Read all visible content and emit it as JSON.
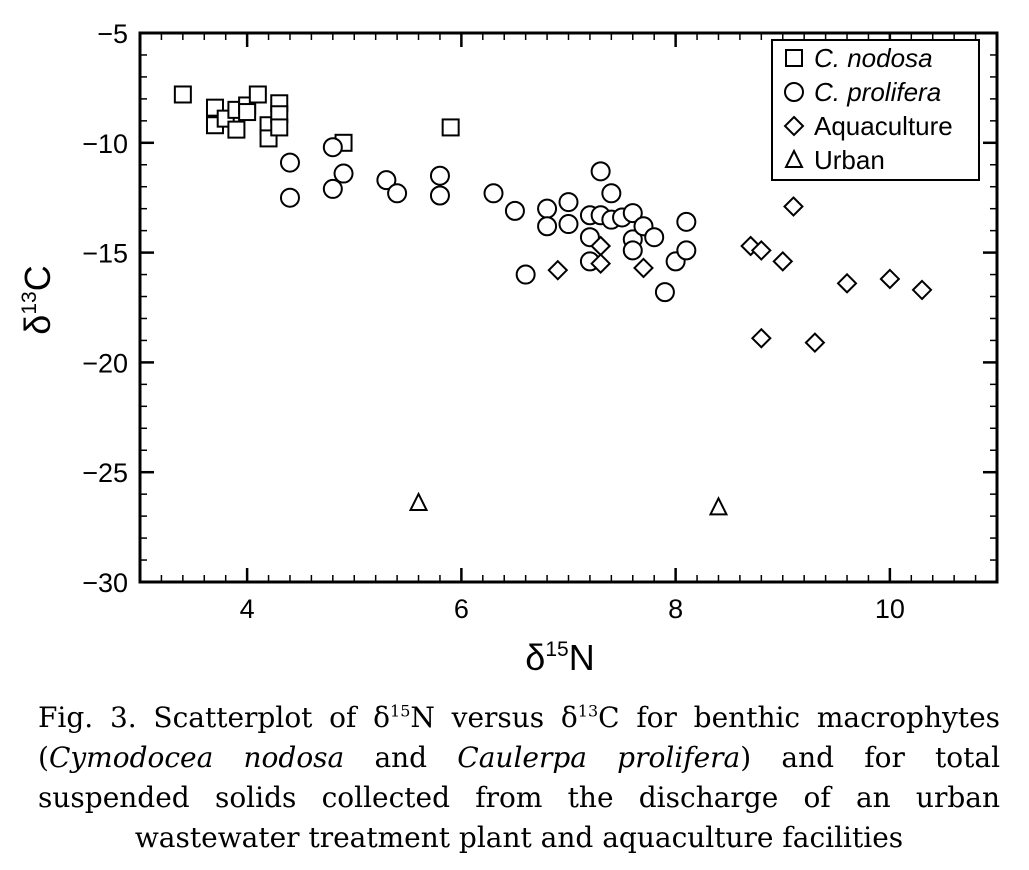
{
  "chart_data": {
    "type": "scatter",
    "xlabel_prefix": "δ",
    "xlabel_sup": "15",
    "xlabel_suffix": "N",
    "ylabel_prefix": "δ",
    "ylabel_sup": "13",
    "ylabel_suffix": "C",
    "xlim": [
      3.0,
      11.0
    ],
    "ylim": [
      -30,
      -5
    ],
    "xticks": [
      4,
      6,
      8,
      10
    ],
    "xtick_labels": [
      "4",
      "6",
      "8",
      "10"
    ],
    "yticks": [
      -5,
      -10,
      -15,
      -20,
      -25,
      -30
    ],
    "ytick_labels": [
      "−5",
      "−10",
      "−15",
      "−20",
      "−25",
      "−30"
    ],
    "legend_placement": "top-right",
    "grid": false,
    "series": [
      {
        "name": "C. nodosa",
        "marker": "square",
        "x": [
          3.4,
          3.7,
          3.7,
          3.8,
          3.9,
          3.9,
          4.0,
          4.0,
          4.1,
          4.2,
          4.2,
          4.3,
          4.3,
          4.3,
          4.9,
          5.9
        ],
        "y": [
          -7.8,
          -8.4,
          -9.2,
          -8.9,
          -8.5,
          -9.4,
          -8.3,
          -8.6,
          -7.8,
          -9.2,
          -9.8,
          -8.2,
          -8.7,
          -9.3,
          -10.0,
          -9.3
        ]
      },
      {
        "name": "C. prolifera",
        "marker": "circle",
        "x": [
          4.4,
          4.4,
          4.8,
          4.8,
          4.9,
          5.3,
          5.4,
          5.8,
          5.8,
          6.3,
          6.5,
          6.6,
          6.8,
          6.8,
          7.0,
          7.0,
          7.2,
          7.2,
          7.2,
          7.3,
          7.3,
          7.4,
          7.4,
          7.5,
          7.6,
          7.6,
          7.6,
          7.7,
          7.8,
          7.9,
          8.0,
          8.1,
          8.1
        ],
        "y": [
          -10.9,
          -12.5,
          -10.2,
          -12.1,
          -11.4,
          -11.7,
          -12.3,
          -11.5,
          -12.4,
          -12.3,
          -13.1,
          -16.0,
          -13.0,
          -13.8,
          -12.7,
          -13.7,
          -13.3,
          -14.3,
          -15.4,
          -11.3,
          -13.3,
          -12.3,
          -13.5,
          -13.4,
          -13.2,
          -14.4,
          -14.9,
          -13.8,
          -14.3,
          -16.8,
          -15.4,
          -13.6,
          -14.9
        ]
      },
      {
        "name": "Aquaculture",
        "marker": "diamond",
        "x": [
          6.9,
          7.3,
          7.3,
          7.7,
          8.7,
          8.8,
          8.8,
          9.0,
          9.1,
          9.3,
          9.6,
          10.0,
          10.3
        ],
        "y": [
          -15.8,
          -14.7,
          -15.5,
          -15.7,
          -14.7,
          -14.9,
          -18.9,
          -15.4,
          -12.9,
          -19.1,
          -16.4,
          -16.2,
          -16.7
        ]
      },
      {
        "name": "Urban",
        "marker": "triangle",
        "x": [
          5.6,
          8.4
        ],
        "y": [
          -26.4,
          -26.6
        ]
      }
    ]
  },
  "caption": {
    "fig_prefix": "Fig. 3. Scatterplot of δ",
    "sup1": "15",
    "mid1": "N versus δ",
    "sup2": "13",
    "mid2": "C for benthic macrophytes (",
    "italic1": "Cymodocea nodosa",
    "mid3": " and ",
    "italic2": "Caulerpa prolifera",
    "tail": ") and for total suspended solids collected from the discharge of an urban wastewater treatment plant and aquaculture facilities"
  }
}
